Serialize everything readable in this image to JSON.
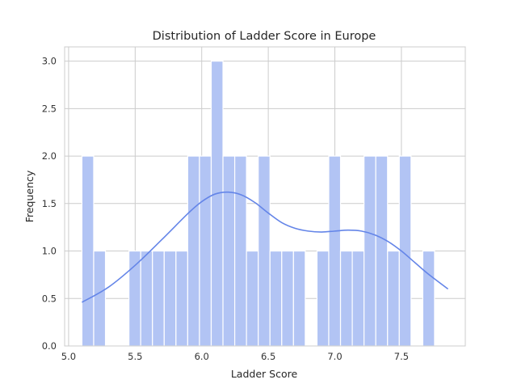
{
  "chart_data": {
    "type": "bar",
    "title": "Distribution of Ladder Score in Europe",
    "xlabel": "Ladder Score",
    "ylabel": "Frequency",
    "xlim": [
      4.97,
      7.98
    ],
    "ylim": [
      0,
      3.15
    ],
    "x_ticks": [
      "5.0",
      "5.5",
      "6.0",
      "6.5",
      "7.0",
      "7.5"
    ],
    "y_ticks": [
      "0.0",
      "0.5",
      "1.0",
      "1.5",
      "2.0",
      "2.5",
      "3.0"
    ],
    "grid": true,
    "bar_color": "#b2c4f4",
    "kde_color": "#6485e8",
    "histogram": {
      "bin_start": 5.1,
      "bin_width": 0.0883,
      "counts": [
        2,
        1,
        0,
        0,
        1,
        1,
        1,
        1,
        1,
        2,
        2,
        3,
        2,
        2,
        1,
        2,
        1,
        1,
        1,
        0,
        1,
        2,
        1,
        1,
        2,
        2,
        1,
        2,
        0,
        1
      ]
    },
    "kde": {
      "x": [
        5.1,
        5.3,
        5.5,
        5.7,
        5.9,
        6.0,
        6.1,
        6.2,
        6.3,
        6.4,
        6.5,
        6.6,
        6.7,
        6.8,
        6.9,
        7.0,
        7.1,
        7.2,
        7.3,
        7.4,
        7.5,
        7.6,
        7.7,
        7.85
      ],
      "y": [
        0.46,
        0.62,
        0.85,
        1.12,
        1.4,
        1.52,
        1.6,
        1.62,
        1.59,
        1.51,
        1.4,
        1.3,
        1.24,
        1.21,
        1.2,
        1.21,
        1.22,
        1.21,
        1.17,
        1.1,
        1.0,
        0.88,
        0.76,
        0.6
      ]
    }
  }
}
